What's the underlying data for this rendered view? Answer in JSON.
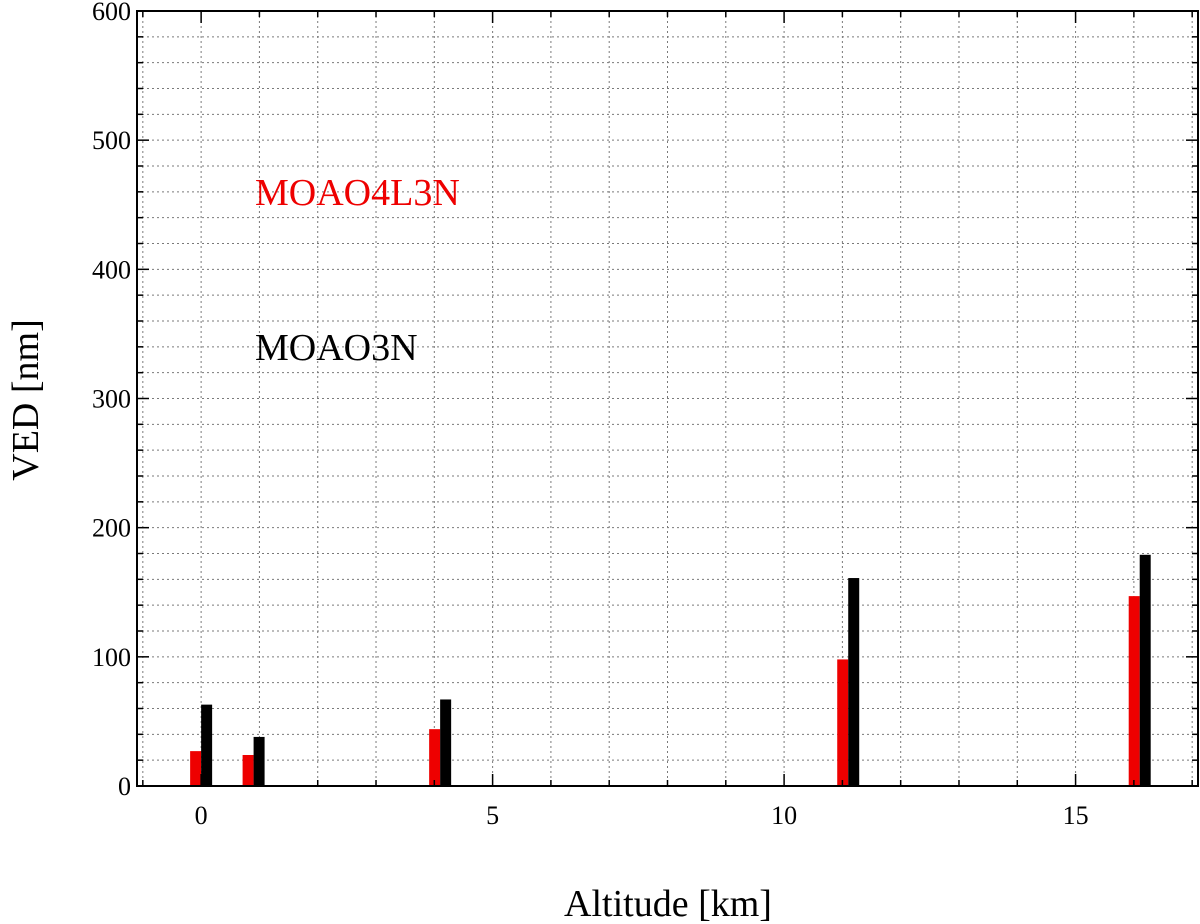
{
  "chart_data": {
    "type": "bar",
    "title": "",
    "xlabel": "Altitude [km]",
    "ylabel": "VED [nm]",
    "xlim": [
      -1.1,
      17.1
    ],
    "ylim": [
      0,
      600
    ],
    "xticks": [
      0,
      5,
      10,
      15
    ],
    "yticks": [
      0,
      100,
      200,
      300,
      400,
      500,
      600
    ],
    "grid": true,
    "legend_position": "upper-left, stacked text labels",
    "x": [
      0,
      0.9,
      4.1,
      11.1,
      16.1
    ],
    "series": [
      {
        "name": "MOAO4L3N",
        "color": "#ee0000",
        "values": [
          27,
          24,
          44,
          98,
          147
        ]
      },
      {
        "name": "MOAO3N",
        "color": "#000000",
        "values": [
          63,
          38,
          67,
          161,
          179
        ]
      }
    ]
  }
}
